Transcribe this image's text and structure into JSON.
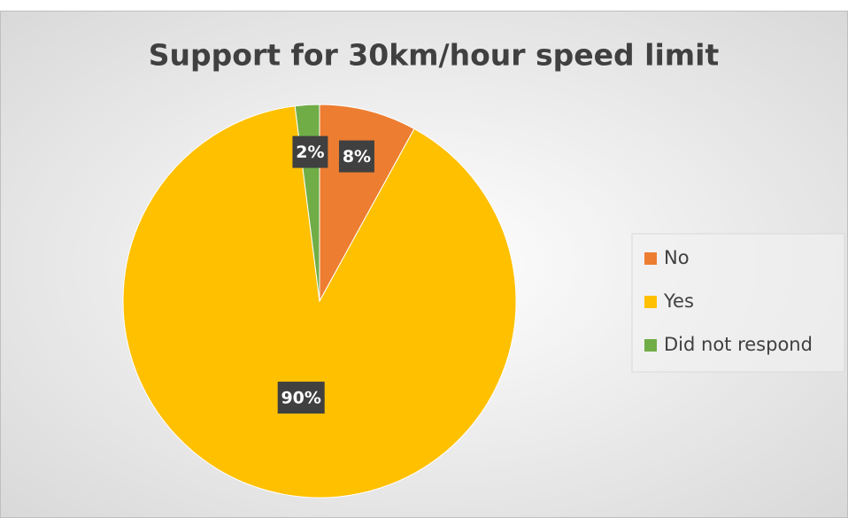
{
  "chart_data": {
    "type": "pie",
    "title": "Support for 30km/hour speed limit",
    "categories": [
      "No",
      "Yes",
      "Did not respond"
    ],
    "values": [
      8,
      90,
      2
    ],
    "value_labels": [
      "8%",
      "90%",
      "2%"
    ],
    "colors": [
      "#ed7d31",
      "#ffc000",
      "#70ad47"
    ],
    "legend": "right"
  }
}
